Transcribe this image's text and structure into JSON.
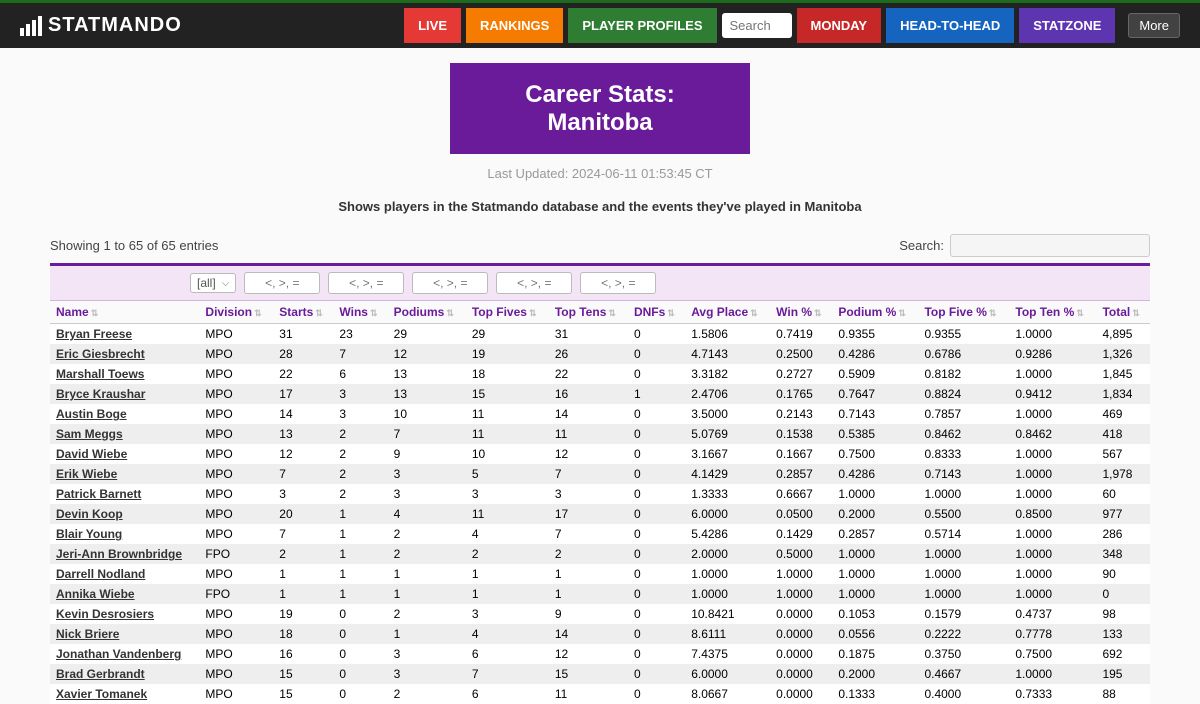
{
  "brand": "STATMANDO",
  "nav": {
    "live": "LIVE",
    "rankings": "RANKINGS",
    "profiles": "PLAYER PROFILES",
    "search_placeholder": "Search",
    "monday": "MONDAY",
    "h2h": "HEAD-TO-HEAD",
    "statzone": "STATZONE",
    "more": "More"
  },
  "title": {
    "l1": "Career Stats:",
    "l2": "Manitoba"
  },
  "updated": "Last Updated: 2024-06-11 01:53:45 CT",
  "description": "Shows players in the Statmando database and the events they've played in Manitoba",
  "showing": "Showing 1 to 65 of 65 entries",
  "search_label": "Search:",
  "filter_all": "[all]",
  "filter_placeholder": "<, >, =",
  "columns": [
    "Name",
    "Division",
    "Starts",
    "Wins",
    "Podiums",
    "Top Fives",
    "Top Tens",
    "DNFs",
    "Avg Place",
    "Win %",
    "Podium %",
    "Top Five %",
    "Top Ten %",
    "Total"
  ],
  "rows": [
    [
      "Bryan Freese",
      "MPO",
      "31",
      "23",
      "29",
      "29",
      "31",
      "0",
      "1.5806",
      "0.7419",
      "0.9355",
      "0.9355",
      "1.0000",
      "4,895"
    ],
    [
      "Eric Giesbrecht",
      "MPO",
      "28",
      "7",
      "12",
      "19",
      "26",
      "0",
      "4.7143",
      "0.2500",
      "0.4286",
      "0.6786",
      "0.9286",
      "1,326"
    ],
    [
      "Marshall Toews",
      "MPO",
      "22",
      "6",
      "13",
      "18",
      "22",
      "0",
      "3.3182",
      "0.2727",
      "0.5909",
      "0.8182",
      "1.0000",
      "1,845"
    ],
    [
      "Bryce Kraushar",
      "MPO",
      "17",
      "3",
      "13",
      "15",
      "16",
      "1",
      "2.4706",
      "0.1765",
      "0.7647",
      "0.8824",
      "0.9412",
      "1,834"
    ],
    [
      "Austin Boge",
      "MPO",
      "14",
      "3",
      "10",
      "11",
      "14",
      "0",
      "3.5000",
      "0.2143",
      "0.7143",
      "0.7857",
      "1.0000",
      "469"
    ],
    [
      "Sam Meggs",
      "MPO",
      "13",
      "2",
      "7",
      "11",
      "11",
      "0",
      "5.0769",
      "0.1538",
      "0.5385",
      "0.8462",
      "0.8462",
      "418"
    ],
    [
      "David Wiebe",
      "MPO",
      "12",
      "2",
      "9",
      "10",
      "12",
      "0",
      "3.1667",
      "0.1667",
      "0.7500",
      "0.8333",
      "1.0000",
      "567"
    ],
    [
      "Erik Wiebe",
      "MPO",
      "7",
      "2",
      "3",
      "5",
      "7",
      "0",
      "4.1429",
      "0.2857",
      "0.4286",
      "0.7143",
      "1.0000",
      "1,978"
    ],
    [
      "Patrick Barnett",
      "MPO",
      "3",
      "2",
      "3",
      "3",
      "3",
      "0",
      "1.3333",
      "0.6667",
      "1.0000",
      "1.0000",
      "1.0000",
      "60"
    ],
    [
      "Devin Koop",
      "MPO",
      "20",
      "1",
      "4",
      "11",
      "17",
      "0",
      "6.0000",
      "0.0500",
      "0.2000",
      "0.5500",
      "0.8500",
      "977"
    ],
    [
      "Blair Young",
      "MPO",
      "7",
      "1",
      "2",
      "4",
      "7",
      "0",
      "5.4286",
      "0.1429",
      "0.2857",
      "0.5714",
      "1.0000",
      "286"
    ],
    [
      "Jeri-Ann Brownbridge",
      "FPO",
      "2",
      "1",
      "2",
      "2",
      "2",
      "0",
      "2.0000",
      "0.5000",
      "1.0000",
      "1.0000",
      "1.0000",
      "348"
    ],
    [
      "Darrell Nodland",
      "MPO",
      "1",
      "1",
      "1",
      "1",
      "1",
      "0",
      "1.0000",
      "1.0000",
      "1.0000",
      "1.0000",
      "1.0000",
      "90"
    ],
    [
      "Annika Wiebe",
      "FPO",
      "1",
      "1",
      "1",
      "1",
      "1",
      "0",
      "1.0000",
      "1.0000",
      "1.0000",
      "1.0000",
      "1.0000",
      "0"
    ],
    [
      "Kevin Desrosiers",
      "MPO",
      "19",
      "0",
      "2",
      "3",
      "9",
      "0",
      "10.8421",
      "0.0000",
      "0.1053",
      "0.1579",
      "0.4737",
      "98"
    ],
    [
      "Nick Briere",
      "MPO",
      "18",
      "0",
      "1",
      "4",
      "14",
      "0",
      "8.6111",
      "0.0000",
      "0.0556",
      "0.2222",
      "0.7778",
      "133"
    ],
    [
      "Jonathan Vandenberg",
      "MPO",
      "16",
      "0",
      "3",
      "6",
      "12",
      "0",
      "7.4375",
      "0.0000",
      "0.1875",
      "0.3750",
      "0.7500",
      "692"
    ],
    [
      "Brad Gerbrandt",
      "MPO",
      "15",
      "0",
      "3",
      "7",
      "15",
      "0",
      "6.0000",
      "0.0000",
      "0.2000",
      "0.4667",
      "1.0000",
      "195"
    ],
    [
      "Xavier Tomanek",
      "MPO",
      "15",
      "0",
      "2",
      "6",
      "11",
      "0",
      "8.0667",
      "0.0000",
      "0.1333",
      "0.4000",
      "0.7333",
      "88"
    ]
  ]
}
